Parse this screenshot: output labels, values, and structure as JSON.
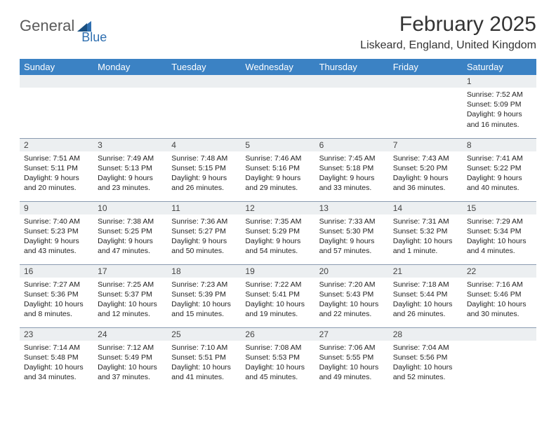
{
  "logo": {
    "text1": "General",
    "text2": "Blue",
    "shape_color": "#2f6fb0"
  },
  "title": "February 2025",
  "location": "Liskeard, England, United Kingdom",
  "header_bg": "#3b82c4",
  "header_fg": "#ffffff",
  "daynum_bg": "#eceff1",
  "border_color": "#8a9bb0",
  "dow": [
    "Sunday",
    "Monday",
    "Tuesday",
    "Wednesday",
    "Thursday",
    "Friday",
    "Saturday"
  ],
  "weeks": [
    [
      null,
      null,
      null,
      null,
      null,
      null,
      {
        "n": "1",
        "sr": "7:52 AM",
        "ss": "5:09 PM",
        "dl": "9 hours and 16 minutes."
      }
    ],
    [
      {
        "n": "2",
        "sr": "7:51 AM",
        "ss": "5:11 PM",
        "dl": "9 hours and 20 minutes."
      },
      {
        "n": "3",
        "sr": "7:49 AM",
        "ss": "5:13 PM",
        "dl": "9 hours and 23 minutes."
      },
      {
        "n": "4",
        "sr": "7:48 AM",
        "ss": "5:15 PM",
        "dl": "9 hours and 26 minutes."
      },
      {
        "n": "5",
        "sr": "7:46 AM",
        "ss": "5:16 PM",
        "dl": "9 hours and 29 minutes."
      },
      {
        "n": "6",
        "sr": "7:45 AM",
        "ss": "5:18 PM",
        "dl": "9 hours and 33 minutes."
      },
      {
        "n": "7",
        "sr": "7:43 AM",
        "ss": "5:20 PM",
        "dl": "9 hours and 36 minutes."
      },
      {
        "n": "8",
        "sr": "7:41 AM",
        "ss": "5:22 PM",
        "dl": "9 hours and 40 minutes."
      }
    ],
    [
      {
        "n": "9",
        "sr": "7:40 AM",
        "ss": "5:23 PM",
        "dl": "9 hours and 43 minutes."
      },
      {
        "n": "10",
        "sr": "7:38 AM",
        "ss": "5:25 PM",
        "dl": "9 hours and 47 minutes."
      },
      {
        "n": "11",
        "sr": "7:36 AM",
        "ss": "5:27 PM",
        "dl": "9 hours and 50 minutes."
      },
      {
        "n": "12",
        "sr": "7:35 AM",
        "ss": "5:29 PM",
        "dl": "9 hours and 54 minutes."
      },
      {
        "n": "13",
        "sr": "7:33 AM",
        "ss": "5:30 PM",
        "dl": "9 hours and 57 minutes."
      },
      {
        "n": "14",
        "sr": "7:31 AM",
        "ss": "5:32 PM",
        "dl": "10 hours and 1 minute."
      },
      {
        "n": "15",
        "sr": "7:29 AM",
        "ss": "5:34 PM",
        "dl": "10 hours and 4 minutes."
      }
    ],
    [
      {
        "n": "16",
        "sr": "7:27 AM",
        "ss": "5:36 PM",
        "dl": "10 hours and 8 minutes."
      },
      {
        "n": "17",
        "sr": "7:25 AM",
        "ss": "5:37 PM",
        "dl": "10 hours and 12 minutes."
      },
      {
        "n": "18",
        "sr": "7:23 AM",
        "ss": "5:39 PM",
        "dl": "10 hours and 15 minutes."
      },
      {
        "n": "19",
        "sr": "7:22 AM",
        "ss": "5:41 PM",
        "dl": "10 hours and 19 minutes."
      },
      {
        "n": "20",
        "sr": "7:20 AM",
        "ss": "5:43 PM",
        "dl": "10 hours and 22 minutes."
      },
      {
        "n": "21",
        "sr": "7:18 AM",
        "ss": "5:44 PM",
        "dl": "10 hours and 26 minutes."
      },
      {
        "n": "22",
        "sr": "7:16 AM",
        "ss": "5:46 PM",
        "dl": "10 hours and 30 minutes."
      }
    ],
    [
      {
        "n": "23",
        "sr": "7:14 AM",
        "ss": "5:48 PM",
        "dl": "10 hours and 34 minutes."
      },
      {
        "n": "24",
        "sr": "7:12 AM",
        "ss": "5:49 PM",
        "dl": "10 hours and 37 minutes."
      },
      {
        "n": "25",
        "sr": "7:10 AM",
        "ss": "5:51 PM",
        "dl": "10 hours and 41 minutes."
      },
      {
        "n": "26",
        "sr": "7:08 AM",
        "ss": "5:53 PM",
        "dl": "10 hours and 45 minutes."
      },
      {
        "n": "27",
        "sr": "7:06 AM",
        "ss": "5:55 PM",
        "dl": "10 hours and 49 minutes."
      },
      {
        "n": "28",
        "sr": "7:04 AM",
        "ss": "5:56 PM",
        "dl": "10 hours and 52 minutes."
      },
      null
    ]
  ]
}
